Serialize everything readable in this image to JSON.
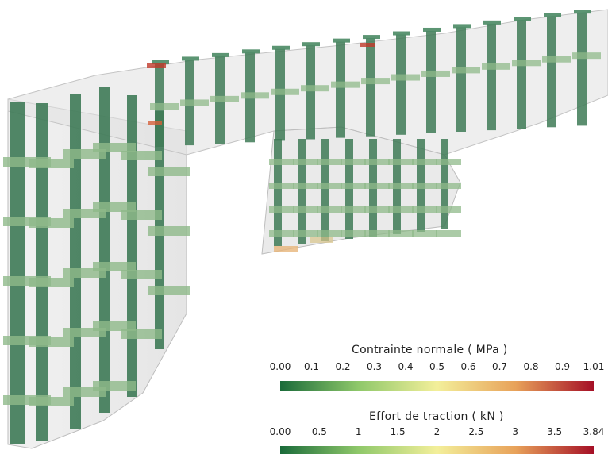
{
  "legend_stress": {
    "title": "Contrainte normale ( MPa )",
    "ticks": [
      "0.00",
      "0.1",
      "0.2",
      "0.3",
      "0.4",
      "0.5",
      "0.6",
      "0.7",
      "0.8",
      "0.9",
      "1.01"
    ],
    "colors": [
      "#1a6b3a",
      "#8fc86a",
      "#f3ef9a",
      "#e8a25a",
      "#a50f26"
    ]
  },
  "legend_traction": {
    "title": "Effort de traction ( kN )",
    "ticks": [
      "0.00",
      "0.5",
      "1",
      "1.5",
      "2",
      "2.5",
      "3",
      "3.5",
      "3.84"
    ],
    "colors": [
      "#1a6b3a",
      "#8fc86a",
      "#f3ef9a",
      "#e8a25a",
      "#a50f26"
    ]
  },
  "scene": {
    "wall_color": "#d9d9d9",
    "post_color": "#3e7a56",
    "slab_color": "#8fb98a"
  }
}
